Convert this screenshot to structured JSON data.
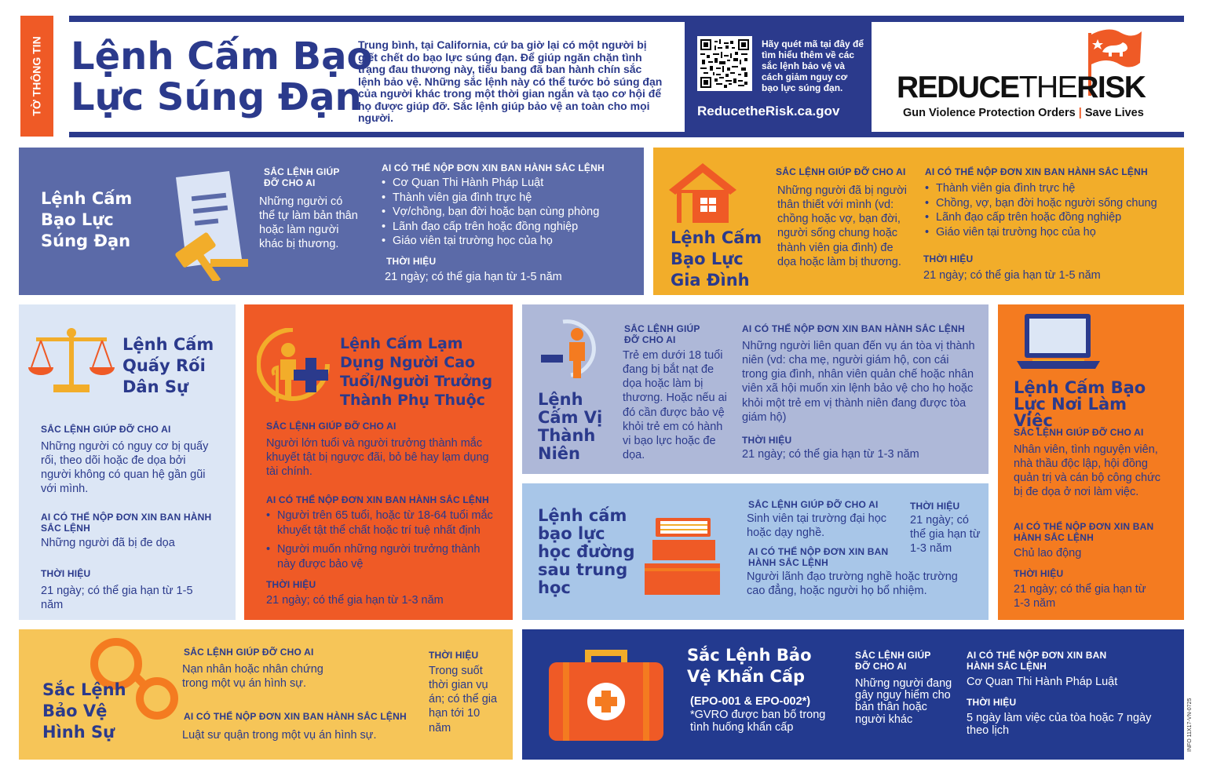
{
  "header": {
    "side_tab": "TỜ THÔNG TIN",
    "title_line1": "Lệnh Cấm Bạo",
    "title_line2": "Lực Súng Đạn",
    "intro": "Trung bình, tại California, cứ ba giờ lại có một người bị giết chết do bạo lực súng đạn. Để giúp ngăn chặn tình trạng đau thương này, tiểu bang đã ban hành chín sắc lệnh bảo vệ. Những sắc lệnh này có thể tước bỏ súng đạn của người khác trong một thời gian ngắn và tạo cơ hội để họ được giúp đỡ. Sắc lệnh giúp bảo vệ an toàn cho mọi người.",
    "qr_text": "Hãy quét mã tại đây để tìm hiểu thêm về các sắc lệnh bảo vệ và cách giảm nguy cơ bạo lực súng đạn.",
    "website": "ReducetheRisk.ca.gov",
    "logo_text_reduce": "REDUCE",
    "logo_text_the": "THE",
    "logo_text_risk": "RISK",
    "logo_tagline_left": "Gun Violence Protection Orders",
    "logo_tagline_right": "Save Lives"
  },
  "cards": {
    "gvro": {
      "title": "Lệnh Cấm Bạo Lực Súng Đạn",
      "who_helps_label": "SẮC LỆNH GIÚP ĐỠ CHO AI",
      "who_helps": "Những người có thể tự làm bản thân hoặc làm người khác bị thương.",
      "who_files_label": "AI CÓ THỂ NỘP ĐƠN XIN BAN HÀNH SẮC LỆNH",
      "who_files": [
        "Cơ Quan Thi Hành Pháp Luật",
        "Thành viên gia đình trực hệ",
        "Vợ/chồng, bạn đời hoặc bạn cùng phòng",
        "Lãnh đạo cấp trên hoặc đồng nghiệp",
        "Giáo viên tại trường học của họ"
      ],
      "duration_label": "THỜI HIỆU",
      "duration": "21 ngày; có thể gia hạn từ 1-5 năm"
    },
    "dv": {
      "title": "Lệnh Cấm Bạo Lực Gia Đình",
      "who_helps_label": "SẮC LỆNH GIÚP ĐỠ CHO AI",
      "who_helps": "Những người đã bị người thân thiết với mình (vd: chồng hoặc vợ, bạn đời, người sống chung hoặc thành viên gia đình) đe dọa hoặc làm bị thương.",
      "who_files_label": "AI CÓ THỂ NỘP ĐƠN XIN BAN HÀNH SẮC LỆNH",
      "who_files": [
        "Thành viên gia đình trực hệ",
        "Chồng, vợ, bạn đời hoặc người sống chung",
        "Lãnh đạo cấp trên hoặc đồng nghiệp",
        "Giáo viên tại trường học của họ"
      ],
      "duration_label": "THỜI HIỆU",
      "duration": "21 ngày; có thể gia hạn từ 1-5 năm"
    },
    "civil": {
      "title": "Lệnh Cấm Quấy Rối Dân Sự",
      "who_helps_label": "SẮC LỆNH GIÚP ĐỠ CHO AI",
      "who_helps": "Những người có nguy cơ bị quấy rối, theo dõi hoặc đe dọa bởi người không có quan hệ gần gũi với mình.",
      "who_files_label": "AI CÓ THỂ NỘP ĐƠN XIN BAN HÀNH SẮC LỆNH",
      "who_files": "Những người đã bị đe dọa",
      "duration_label": "THỜI HIỆU",
      "duration": "21 ngày; có thể gia hạn từ 1-5 năm"
    },
    "elder": {
      "title": "Lệnh Cấm Lạm Dụng Người Cao Tuổi/Người Trưởng Thành Phụ Thuộc",
      "who_helps_label": "SẮC LỆNH GIÚP ĐỠ CHO AI",
      "who_helps": "Người lớn tuổi và người trưởng thành mắc khuyết tật bị ngược đãi, bỏ bê hay lạm dụng tài chính.",
      "who_files_label": "AI CÓ THỂ NỘP ĐƠN XIN BAN HÀNH SẮC LỆNH",
      "who_files": [
        "Người trên 65 tuổi, hoặc từ 18-64 tuổi mắc khuyết tật thể chất hoặc trí tuệ nhất định",
        "Người muốn những người trưởng thành này được bảo vệ"
      ],
      "duration_label": "THỜI HIỆU",
      "duration": "21 ngày; có thể gia hạn từ 1-3 năm"
    },
    "juvenile": {
      "title": "Lệnh Cấm Vị Thành Niên",
      "who_helps_label": "SẮC LỆNH GIÚP ĐỠ CHO AI",
      "who_helps": "Trẻ em dưới 18 tuổi đang bị bắt nạt đe dọa hoặc làm bị thương. Hoặc nếu ai đó cần được bảo vệ khỏi trẻ em có hành vi bạo lực hoặc đe dọa.",
      "who_files_label": "AI CÓ THỂ NỘP ĐƠN XIN BAN HÀNH SẮC LỆNH",
      "who_files": "Những người liên quan đến vụ án tòa vị thành niên (vd: cha mẹ, người giám hộ, con cái trong gia đình, nhân viên quản chế hoặc nhân viên xã hội muốn xin lệnh bảo vệ cho họ hoặc khỏi một trẻ em vị thành niên đang được tòa giám hộ)",
      "duration_label": "THỜI HIỆU",
      "duration": "21 ngày; có thể gia hạn từ 1-3 năm"
    },
    "workplace": {
      "title": "Lệnh Cấm Bạo Lực Nơi Làm Việc",
      "who_helps_label": "SẮC LỆNH GIÚP ĐỠ CHO AI",
      "who_helps": "Nhân viên, tình nguyện viên, nhà thầu độc lập, hội đồng quản trị và cán bộ công chức bị đe dọa ở nơi làm việc.",
      "who_files_label": "AI CÓ THỂ NỘP ĐƠN XIN BAN HÀNH SẮC LỆNH",
      "who_files": "Chủ lao động",
      "duration_label": "THỜI HIỆU",
      "duration": "21 ngày; có thể gia hạn từ 1-3 năm"
    },
    "postsecondary": {
      "title": "Lệnh cấm bạo lực học đường sau trung học",
      "who_helps_label": "SẮC LỆNH GIÚP ĐỠ CHO AI",
      "who_helps": "Sinh viên tại trường đại học hoặc dạy nghề.",
      "who_files_label": "AI CÓ THỂ NỘP ĐƠN XIN BAN HÀNH SẮC LỆNH",
      "who_files": "Người lãnh đạo trường nghề hoặc trường cao đẳng, hoặc người họ bổ nhiệm.",
      "duration_label": "THỜI HIỆU",
      "duration": "21 ngày; có thể gia hạn từ 1-3 năm"
    },
    "criminal": {
      "title": "Sắc Lệnh Bảo Vệ Hình Sự",
      "who_helps_label": "SẮC LỆNH GIÚP ĐỠ CHO AI",
      "who_helps": "Nạn nhân hoặc nhân chứng trong một vụ án hình sự.",
      "who_files_label": "AI CÓ THỂ NỘP ĐƠN XIN BAN HÀNH SẮC LỆNH",
      "who_files": "Luật sư quận trong một vụ án hình sự.",
      "duration_label": "THỜI HIỆU",
      "duration": "Trong suốt thời gian vụ án; có thể gia hạn tới 10 năm"
    },
    "epo": {
      "title": "Sắc Lệnh Bảo Vệ Khẩn Cấp",
      "codes": "(EPO-001 & EPO-002*)",
      "gvro_note": "*GVRO được ban bố trong tình huống khẩn cấp",
      "who_helps_label": "SẮC LỆNH GIÚP ĐỠ CHO AI",
      "who_helps": "Những người đang gây nguy hiểm cho bản thân hoặc người khác",
      "who_files_label": "AI CÓ THỂ NỘP ĐƠN XIN BAN HÀNH SẮC LỆNH",
      "who_files": "Cơ Quan Thi Hành Pháp Luật",
      "duration_label": "THỜI HIỆU",
      "duration": "5 ngày làm việc của tòa hoặc 7 ngày theo lịch"
    }
  },
  "footer": {
    "doc_code": "INFO 11X17-VN-0725"
  },
  "colors": {
    "navy": "#2b3a8c",
    "slate": "#5b6aa8",
    "yellow": "#f2ad2a",
    "orange_red": "#ef5a26",
    "light_blue": "#dce6f5",
    "lavender": "#aeb8d8",
    "sky": "#a8c6e8",
    "orange": "#f47b20",
    "pale_yellow": "#f6c558",
    "deep_navy": "#233a8f"
  }
}
